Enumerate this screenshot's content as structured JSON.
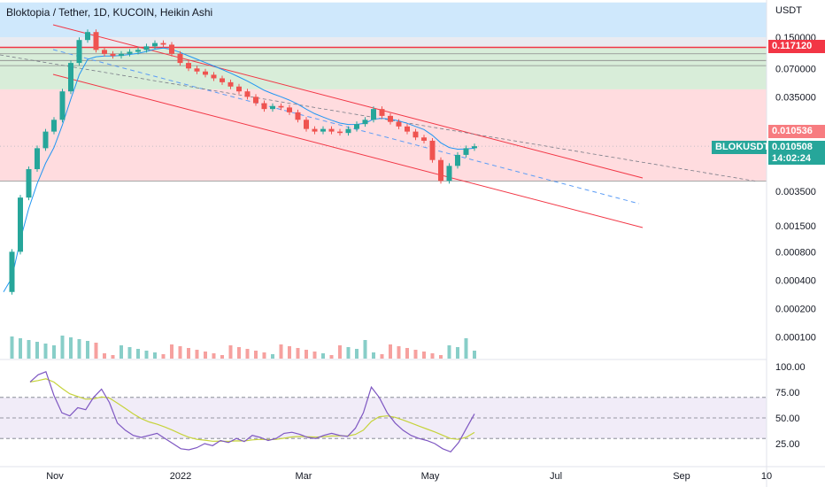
{
  "title": "Bloktopia / Tether, 1D, KUCOIN, Heikin Ashi",
  "currency": "USDT",
  "price_tags": {
    "level_red": "0.117120",
    "level_pink": "0.010536",
    "last_price": "0.010508",
    "countdown": "14:02:24",
    "symbol": "BLOKUSDT"
  },
  "colors": {
    "up": "#26a69a",
    "down": "#ef5350",
    "channel": "#f23645",
    "midline": "#5b9cf6",
    "ma": "#2196f3",
    "rsi": "#7e57c2",
    "rsi_ma": "#c6d33b"
  },
  "chart_data": [
    {
      "type": "line",
      "name": "price",
      "scale": "log",
      "x_ticks": [
        "Nov",
        "2022",
        "Mar",
        "May",
        "Jul",
        "Sep",
        "10"
      ],
      "y_ticks": [
        "0.150000",
        "0.070000",
        "0.035000",
        "0.003500",
        "0.001500",
        "0.000800",
        "0.000400",
        "0.000200",
        "0.000100"
      ],
      "zones": [
        {
          "from": 0.15,
          "to": 0.35,
          "color": "#bbdefb"
        },
        {
          "from": 0.117,
          "to": 0.15,
          "color": "#e0e3eb"
        },
        {
          "from": 0.042,
          "to": 0.117,
          "color": "#c8e6c9"
        },
        {
          "from": 0.0045,
          "to": 0.042,
          "color": "#ffcdd2"
        }
      ],
      "levels": [
        0.117,
        0.1,
        0.085,
        0.075,
        0.0105,
        0.0045
      ],
      "series": [
        {
          "values": [
            0.0003,
            0.0008,
            0.003,
            0.006,
            0.01,
            0.015,
            0.02,
            0.04,
            0.08,
            0.14,
            0.17,
            0.11,
            0.1,
            0.095,
            0.1,
            0.105,
            0.11,
            0.12,
            0.13,
            0.125,
            0.1,
            0.08,
            0.07,
            0.065,
            0.06,
            0.055,
            0.05,
            0.045,
            0.04,
            0.035,
            0.03,
            0.026,
            0.028,
            0.027,
            0.024,
            0.02,
            0.016,
            0.015,
            0.016,
            0.015,
            0.0145,
            0.016,
            0.018,
            0.02,
            0.026,
            0.022,
            0.019,
            0.017,
            0.015,
            0.013,
            0.012,
            0.0075,
            0.0045,
            0.0065,
            0.0085,
            0.01,
            0.0105
          ]
        }
      ]
    },
    {
      "type": "line",
      "name": "RSI",
      "ylim": [
        0,
        110
      ],
      "y_ticks": [
        "100.00",
        "75.00",
        "50.00",
        "25.00"
      ],
      "bands": [
        70,
        50,
        30
      ],
      "series": [
        {
          "values": [
            85,
            92,
            95,
            72,
            55,
            52,
            60,
            58,
            70,
            78,
            65,
            45,
            38,
            33,
            31,
            33,
            35,
            30,
            25,
            20,
            19,
            21,
            25,
            23,
            28,
            26,
            30,
            27,
            33,
            31,
            28,
            30,
            35,
            36,
            34,
            31,
            30,
            33,
            35,
            33,
            32,
            40,
            55,
            80,
            70,
            55,
            45,
            38,
            33,
            30,
            28,
            25,
            20,
            17,
            26,
            40,
            54
          ]
        }
      ]
    }
  ]
}
